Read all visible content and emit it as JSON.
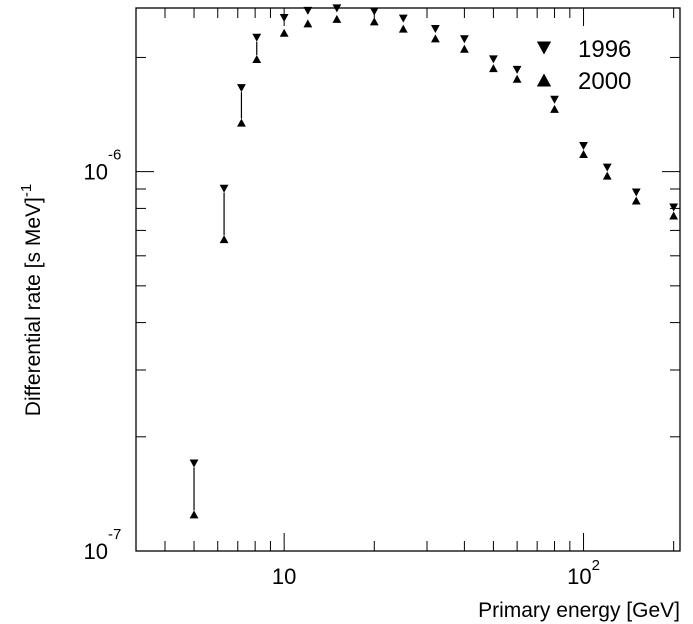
{
  "chart_data": {
    "type": "scatter",
    "title": "",
    "xlabel": "Primary energy [GeV]",
    "ylabel": "Differential rate [s MeV]",
    "ylabel_superscript": "-1",
    "x_scale": "log",
    "y_scale": "log",
    "xlim": [
      3.2,
      210
    ],
    "ylim": [
      1e-07,
      2.7e-06
    ],
    "grid": false,
    "legend_position": "top-right",
    "x_ticks": [
      {
        "base": "10",
        "exp": "",
        "value": 10
      },
      {
        "base": "10",
        "exp": "2",
        "value": 100
      }
    ],
    "y_ticks": [
      {
        "base": "10",
        "exp": "-7",
        "value": 1e-07
      },
      {
        "base": "10",
        "exp": "-6",
        "value": 1e-06
      }
    ],
    "x": [
      5,
      6.3,
      7.2,
      8.1,
      10,
      12,
      15,
      20,
      25,
      32,
      40,
      50,
      60,
      80,
      100,
      120,
      150,
      200
    ],
    "series": [
      {
        "name": "1996",
        "marker": "triangle-down",
        "values": [
          1.66e-07,
          8.8e-07,
          1.62e-06,
          2.2e-06,
          2.48e-06,
          2.59e-06,
          2.63e-06,
          2.58e-06,
          2.47e-06,
          2.32e-06,
          2.18e-06,
          1.93e-06,
          1.81e-06,
          1.51e-06,
          1.14e-06,
          1e-06,
          8.6e-07,
          7.85e-07
        ]
      },
      {
        "name": "2000",
        "marker": "triangle-up",
        "values": [
          1.28e-07,
          6.8e-07,
          1.38e-06,
          2.03e-06,
          2.38e-06,
          2.52e-06,
          2.59e-06,
          2.55e-06,
          2.44e-06,
          2.3e-06,
          2.16e-06,
          1.92e-06,
          1.8e-06,
          1.5e-06,
          1.14e-06,
          1e-06,
          8.6e-07,
          7.85e-07
        ]
      }
    ]
  }
}
